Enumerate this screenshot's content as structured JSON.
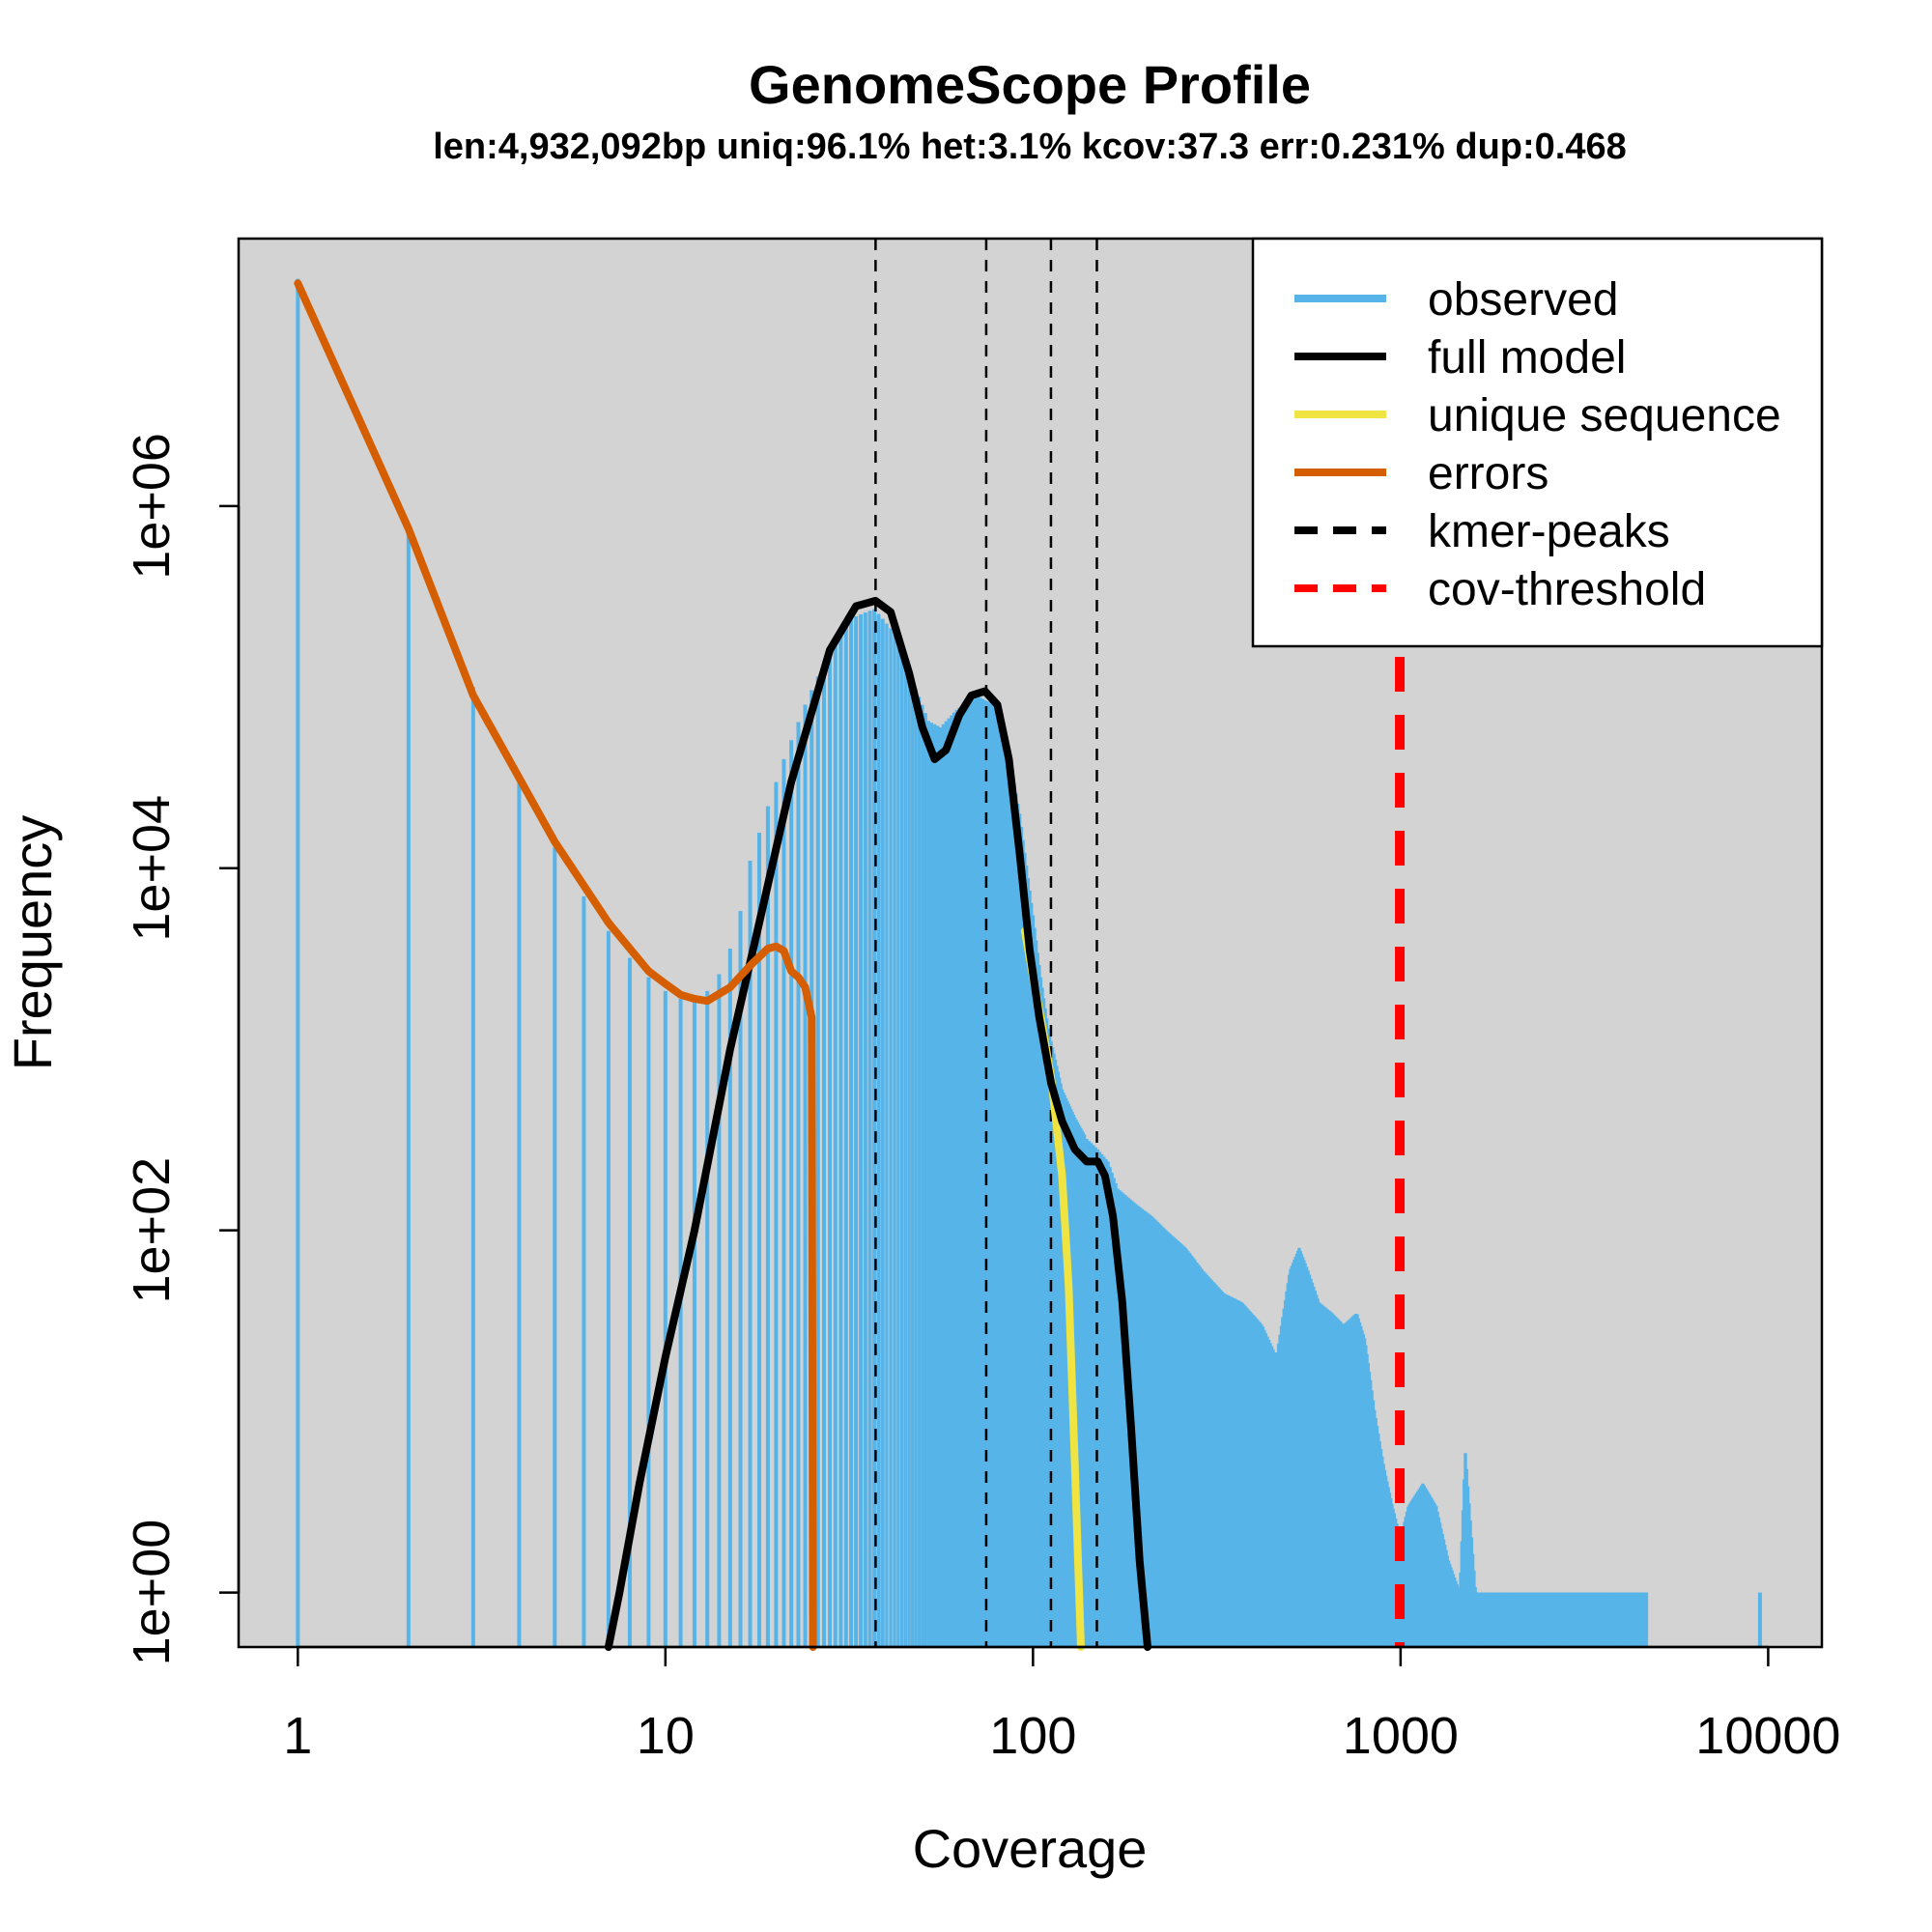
{
  "chart_data": {
    "type": "bar",
    "title": "GenomeScope Profile",
    "subtitle": "len:4,932,092bp uniq:96.1% het:3.1% kcov:37.3 err:0.231% dup:0.468",
    "xlabel": "Coverage",
    "ylabel": "Frequency",
    "x_scale": "log",
    "y_scale": "log",
    "xlim": [
      0.69,
      14000
    ],
    "ylim": [
      0.5,
      30000000
    ],
    "x_ticks": [
      1,
      10,
      100,
      1000,
      10000
    ],
    "x_tick_labels": [
      "1",
      "10",
      "100",
      "1000",
      "10000"
    ],
    "y_ticks": [
      1,
      100,
      10000,
      1000000
    ],
    "y_tick_labels": [
      "1e+00",
      "1e+02",
      "1e+04",
      "1e+06"
    ],
    "background": "#d3d3d3",
    "legend_position": "top-right",
    "colors": {
      "observed": "#56b4e9",
      "full_model": "#000000",
      "unique_sequence": "#f0e442",
      "errors": "#d55e00",
      "kmer_peaks": "#000000",
      "cov_threshold": "#ff0000"
    },
    "legend": [
      {
        "label": "observed",
        "key": "observed",
        "style": "solid"
      },
      {
        "label": "full model",
        "key": "full_model",
        "style": "solid"
      },
      {
        "label": "unique sequence",
        "key": "unique_sequence",
        "style": "solid"
      },
      {
        "label": "errors",
        "key": "errors",
        "style": "solid"
      },
      {
        "label": "kmer-peaks",
        "key": "kmer_peaks",
        "style": "dashed"
      },
      {
        "label": "cov-threshold",
        "key": "cov_threshold",
        "style": "dashed"
      }
    ],
    "kmer_peaks": [
      37.3,
      74.6,
      111.9,
      149.2
    ],
    "cov_threshold": 995,
    "observed": {
      "anchors": [
        [
          1,
          18000000
        ],
        [
          2,
          700000
        ],
        [
          3,
          100000
        ],
        [
          4,
          30000
        ],
        [
          5,
          13000
        ],
        [
          6,
          7000
        ],
        [
          7,
          4500
        ],
        [
          8,
          3200
        ],
        [
          9,
          2500
        ],
        [
          10,
          2100
        ],
        [
          11,
          1900
        ],
        [
          12,
          1900
        ],
        [
          13,
          2100
        ],
        [
          14,
          2600
        ],
        [
          15,
          3600
        ],
        [
          16,
          5800
        ],
        [
          17,
          11000
        ],
        [
          19,
          22000
        ],
        [
          21,
          40000
        ],
        [
          24,
          80000
        ],
        [
          28,
          160000
        ],
        [
          32,
          240000
        ],
        [
          37,
          270000
        ],
        [
          42,
          200000
        ],
        [
          47,
          110000
        ],
        [
          52,
          65000
        ],
        [
          56,
          60000
        ],
        [
          62,
          75000
        ],
        [
          70,
          90000
        ],
        [
          78,
          80000
        ],
        [
          85,
          50000
        ],
        [
          92,
          20000
        ],
        [
          100,
          5500
        ],
        [
          105,
          2500
        ],
        [
          110,
          1300
        ],
        [
          120,
          600
        ],
        [
          130,
          420
        ],
        [
          140,
          320
        ],
        [
          150,
          280
        ],
        [
          160,
          240
        ],
        [
          170,
          170
        ],
        [
          190,
          140
        ],
        [
          210,
          120
        ],
        [
          230,
          100
        ],
        [
          260,
          80
        ],
        [
          290,
          60
        ],
        [
          330,
          45
        ],
        [
          370,
          40
        ],
        [
          420,
          30
        ],
        [
          460,
          20
        ],
        [
          500,
          60
        ],
        [
          530,
          80
        ],
        [
          560,
          60
        ],
        [
          600,
          40
        ],
        [
          650,
          35
        ],
        [
          700,
          30
        ],
        [
          760,
          35
        ],
        [
          800,
          25
        ],
        [
          850,
          10
        ],
        [
          900,
          5
        ],
        [
          950,
          3
        ],
        [
          1000,
          2
        ],
        [
          1050,
          3
        ],
        [
          1150,
          4
        ],
        [
          1250,
          3
        ],
        [
          1350,
          1.5
        ],
        [
          1450,
          1
        ],
        [
          1500,
          6
        ],
        [
          1600,
          1
        ],
        [
          1800,
          1
        ],
        [
          2200,
          1
        ],
        [
          3000,
          1
        ],
        [
          4000,
          1
        ],
        [
          4700,
          1
        ]
      ],
      "singletons": [
        [
          9500,
          1
        ]
      ]
    },
    "full_model": [
      [
        7,
        0.5
      ],
      [
        7.5,
        1
      ],
      [
        8.5,
        4
      ],
      [
        10,
        20
      ],
      [
        12,
        100
      ],
      [
        15,
        1000
      ],
      [
        18,
        5000
      ],
      [
        22,
        30000
      ],
      [
        28,
        160000
      ],
      [
        33,
        280000
      ],
      [
        37.3,
        300000
      ],
      [
        41,
        260000
      ],
      [
        46,
        120000
      ],
      [
        50,
        60000
      ],
      [
        54,
        40000
      ],
      [
        58,
        45000
      ],
      [
        63,
        70000
      ],
      [
        68,
        90000
      ],
      [
        74,
        95000
      ],
      [
        80,
        80000
      ],
      [
        86,
        40000
      ],
      [
        92,
        12000
      ],
      [
        98,
        3500
      ],
      [
        104,
        1500
      ],
      [
        112,
        650
      ],
      [
        120,
        400
      ],
      [
        130,
        280
      ],
      [
        140,
        240
      ],
      [
        150,
        240
      ],
      [
        157,
        200
      ],
      [
        165,
        120
      ],
      [
        175,
        40
      ],
      [
        185,
        8
      ],
      [
        195,
        1.5
      ],
      [
        205,
        0.5
      ]
    ],
    "unique_sequence": [
      [
        95,
        4500
      ],
      [
        100,
        2500
      ],
      [
        105,
        1500
      ],
      [
        112,
        700
      ],
      [
        120,
        200
      ],
      [
        125,
        50
      ],
      [
        130,
        5
      ],
      [
        135,
        0.5
      ]
    ],
    "errors": [
      [
        1,
        17000000
      ],
      [
        2,
        750000
      ],
      [
        3,
        90000
      ],
      [
        5,
        14000
      ],
      [
        7,
        5000
      ],
      [
        9,
        2700
      ],
      [
        10,
        2300
      ],
      [
        11,
        2000
      ],
      [
        12,
        1900
      ],
      [
        13,
        1850
      ],
      [
        15,
        2200
      ],
      [
        17,
        2900
      ],
      [
        19,
        3600
      ],
      [
        20,
        3700
      ],
      [
        21,
        3500
      ],
      [
        22,
        2700
      ],
      [
        23,
        2500
      ],
      [
        24,
        2200
      ],
      [
        25,
        1500
      ],
      [
        25.2,
        0.5
      ]
    ]
  }
}
